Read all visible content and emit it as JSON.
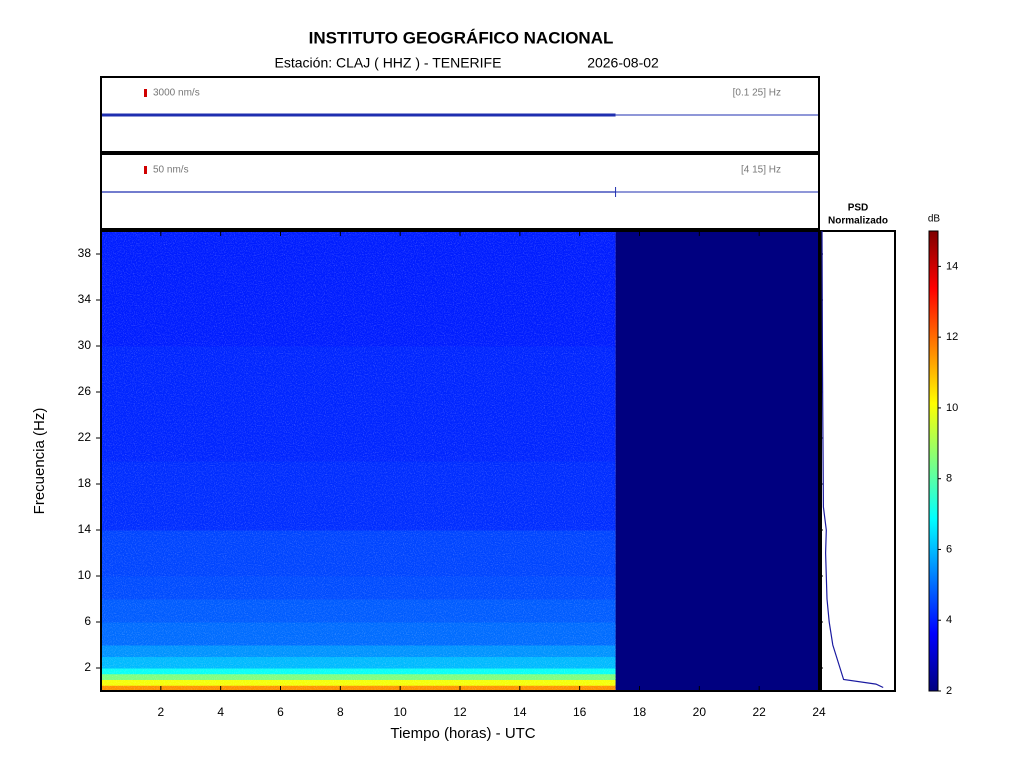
{
  "chart_data": {
    "type": "spectrogram",
    "title": "INSTITUTO GEOGRÁFICO NACIONAL",
    "subtitle": "Estación:  CLAJ ( HHZ ) - TENERIFE",
    "date": "2026-08-02",
    "traces": [
      {
        "scale": "3000 nm/s",
        "band": "[0.1 25] Hz"
      },
      {
        "scale": "50 nm/s",
        "band": "[4 15] Hz"
      }
    ],
    "trace_color": "#1f2fb0",
    "xlabel": "Tiempo (horas) - UTC",
    "ylabel": "Frecuencia  (Hz)",
    "xlim": [
      0,
      24
    ],
    "xticks": [
      2,
      4,
      6,
      8,
      10,
      12,
      14,
      16,
      18,
      20,
      22,
      24
    ],
    "ylim": [
      0,
      40
    ],
    "yticks": [
      2,
      6,
      10,
      14,
      18,
      22,
      26,
      30,
      34,
      38
    ],
    "time_bins": [
      0,
      17.2,
      24
    ],
    "freq_bins": [
      0,
      0.5,
      1,
      1.5,
      2,
      3,
      4,
      6,
      8,
      10,
      14,
      20,
      30,
      40
    ],
    "values": [
      [
        11.5,
        10,
        8.5,
        7,
        6,
        5.5,
        5,
        4.8,
        4.6,
        4.5,
        4.2,
        4.1,
        4
      ],
      [
        2,
        2,
        2,
        2,
        2,
        2,
        2,
        2,
        2,
        2,
        2,
        2,
        2
      ]
    ],
    "psd": {
      "title": [
        "PSD",
        "Normalizado"
      ],
      "color": "#1a1aa0",
      "xlim": [
        0,
        1
      ],
      "frequencies": [
        0.3,
        0.6,
        1,
        2,
        3,
        4,
        6,
        8,
        10,
        12,
        14,
        16,
        20,
        25,
        30,
        35,
        40
      ],
      "values": [
        0.85,
        0.75,
        0.3,
        0.25,
        0.2,
        0.15,
        0.1,
        0.07,
        0.06,
        0.05,
        0.06,
        0.02,
        0.015,
        0.01,
        0.005,
        0.003,
        0
      ]
    },
    "colorbar": {
      "label": "dB",
      "lim": [
        2,
        15
      ],
      "ticks": [
        2,
        4,
        6,
        8,
        10,
        12,
        14
      ]
    }
  }
}
